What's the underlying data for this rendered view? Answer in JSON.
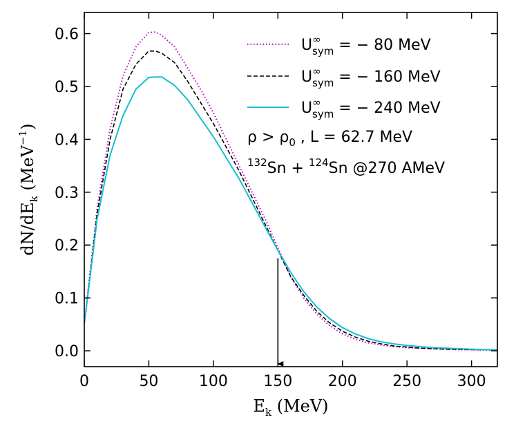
{
  "chart_data": {
    "type": "line",
    "xlabel": {
      "main": "E",
      "sub": "k",
      "unit": " (MeV)"
    },
    "ylabel": {
      "main": "dN/dE",
      "sub": "k",
      "unit_open": " (MeV",
      "unit_sup": "−1",
      "unit_close": ")"
    },
    "xlim": [
      0,
      320
    ],
    "ylim": [
      -0.03,
      0.64
    ],
    "xticks": [
      0,
      50,
      100,
      150,
      200,
      250,
      300
    ],
    "yticks": [
      0.0,
      0.1,
      0.2,
      0.3,
      0.4,
      0.5,
      0.6
    ],
    "xtick_labels": [
      "0",
      "50",
      "100",
      "150",
      "200",
      "250",
      "300"
    ],
    "ytick_labels": [
      "0.0",
      "0.1",
      "0.2",
      "0.3",
      "0.4",
      "0.5",
      "0.6"
    ],
    "grid": false,
    "legend_position": "top-right",
    "series": [
      {
        "name": "U_sym^∞ = −80 MeV",
        "legend": {
          "base": "U",
          "sup": "∞",
          "sub": "sym",
          "rest": " = − 80 MeV"
        },
        "color": "#c000c0",
        "style": "dotted",
        "x": [
          0,
          10,
          20,
          30,
          40,
          50,
          55,
          60,
          70,
          80,
          90,
          100,
          110,
          120,
          130,
          140,
          150,
          160,
          170,
          180,
          190,
          200,
          210,
          220,
          230,
          240,
          250,
          260,
          270,
          280,
          290,
          300,
          310,
          320
        ],
        "y": [
          0.05,
          0.27,
          0.42,
          0.52,
          0.575,
          0.602,
          0.603,
          0.597,
          0.575,
          0.535,
          0.495,
          0.45,
          0.4,
          0.35,
          0.3,
          0.25,
          0.195,
          0.14,
          0.1,
          0.07,
          0.048,
          0.032,
          0.022,
          0.015,
          0.011,
          0.008,
          0.006,
          0.005,
          0.004,
          0.003,
          0.002,
          0.002,
          0.001,
          0.001
        ]
      },
      {
        "name": "U_sym^∞ = −160 MeV",
        "legend": {
          "base": "U",
          "sup": "∞",
          "sub": "sym",
          "rest": " = − 160 MeV"
        },
        "color": "#000000",
        "style": "dashed",
        "x": [
          0,
          10,
          20,
          30,
          40,
          50,
          55,
          60,
          70,
          80,
          90,
          100,
          110,
          120,
          130,
          140,
          150,
          160,
          170,
          180,
          190,
          200,
          210,
          220,
          230,
          240,
          250,
          260,
          270,
          280,
          290,
          300,
          310,
          320
        ],
        "y": [
          0.05,
          0.26,
          0.4,
          0.495,
          0.542,
          0.567,
          0.567,
          0.563,
          0.545,
          0.51,
          0.47,
          0.43,
          0.385,
          0.34,
          0.29,
          0.24,
          0.19,
          0.14,
          0.105,
          0.075,
          0.053,
          0.037,
          0.026,
          0.018,
          0.013,
          0.009,
          0.007,
          0.005,
          0.004,
          0.003,
          0.003,
          0.002,
          0.002,
          0.001
        ]
      },
      {
        "name": "U_sym^∞ = −240 MeV",
        "legend": {
          "base": "U",
          "sup": "∞",
          "sub": "sym",
          "rest": " = − 240 MeV"
        },
        "color": "#17becf",
        "style": "solid",
        "x": [
          0,
          10,
          20,
          30,
          40,
          50,
          55,
          60,
          70,
          80,
          90,
          100,
          110,
          120,
          130,
          140,
          150,
          160,
          170,
          180,
          190,
          200,
          210,
          220,
          230,
          240,
          250,
          260,
          270,
          280,
          290,
          300,
          310,
          320
        ],
        "y": [
          0.05,
          0.25,
          0.37,
          0.445,
          0.495,
          0.517,
          0.518,
          0.518,
          0.502,
          0.475,
          0.44,
          0.405,
          0.365,
          0.325,
          0.28,
          0.235,
          0.19,
          0.148,
          0.112,
          0.083,
          0.061,
          0.044,
          0.032,
          0.023,
          0.017,
          0.013,
          0.01,
          0.008,
          0.006,
          0.005,
          0.004,
          0.003,
          0.002,
          0.002
        ]
      }
    ],
    "annotations": {
      "line1": {
        "a": "ρ > ρ",
        "a_sub": "0",
        "b": " ,  L = 62.7 MeV"
      },
      "line2": {
        "sup1": "132",
        "t1": "Sn + ",
        "sup2": "124",
        "t2": "Sn @270 AMeV"
      },
      "arrow": {
        "x": 150,
        "y_from": 0.175,
        "y_to": -0.03
      }
    }
  }
}
